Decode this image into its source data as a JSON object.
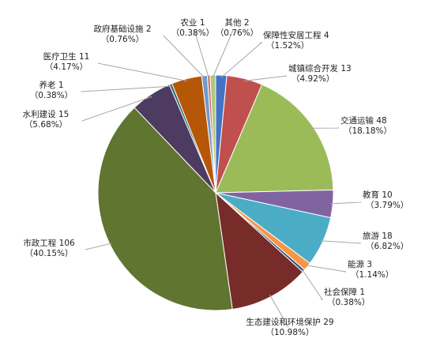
{
  "chart_data": {
    "type": "pie",
    "title": "",
    "legend": "none",
    "slices": [
      {
        "label": "保障性安居工程",
        "value": 4,
        "pct": "1.52%",
        "color": "#4472c4"
      },
      {
        "label": "城镇综合开发",
        "value": 13,
        "pct": "4.92%",
        "color": "#c0504d"
      },
      {
        "label": "交通运输",
        "value": 48,
        "pct": "18.18%",
        "color": "#9bbb59"
      },
      {
        "label": "教育",
        "value": 10,
        "pct": "3.79%",
        "color": "#8064a2"
      },
      {
        "label": "旅游",
        "value": 18,
        "pct": "6.82%",
        "color": "#4bacc6"
      },
      {
        "label": "能源",
        "value": 3,
        "pct": "1.14%",
        "color": "#f79646"
      },
      {
        "label": "社会保障",
        "value": 1,
        "pct": "0.38%",
        "color": "#2c4d75"
      },
      {
        "label": "生态建设和环境保护",
        "value": 29,
        "pct": "10.98%",
        "color": "#772c2a"
      },
      {
        "label": "市政工程",
        "value": 106,
        "pct": "40.15%",
        "color": "#5f7530"
      },
      {
        "label": "水利建设",
        "value": 15,
        "pct": "5.68%",
        "color": "#4d3b62"
      },
      {
        "label": "养老",
        "value": 1,
        "pct": "0.38%",
        "color": "#276a7c"
      },
      {
        "label": "医疗卫生",
        "value": 11,
        "pct": "4.17%",
        "color": "#b65708"
      },
      {
        "label": "政府基础设施",
        "value": 2,
        "pct": "0.76%",
        "color": "#729aca"
      },
      {
        "label": "农业",
        "value": 1,
        "pct": "0.38%",
        "color": "#cd7371"
      },
      {
        "label": "其他",
        "value": 2,
        "pct": "0.76%",
        "color": "#afc97a"
      }
    ]
  }
}
